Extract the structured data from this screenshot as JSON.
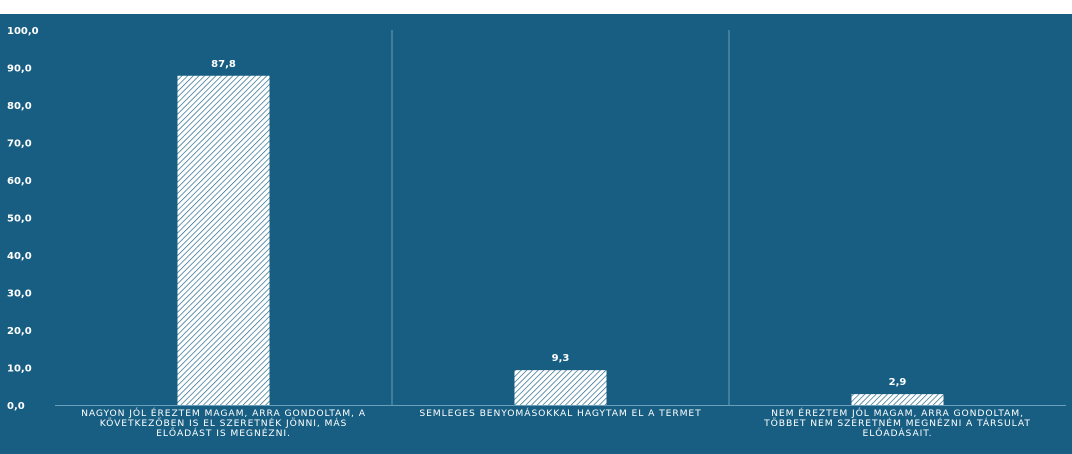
{
  "chart_data": {
    "type": "bar",
    "categories": [
      "NAGYON JÓL ÉREZTEM MAGAM, ARRA GONDOLTAM, A KÖVETKEZŐBEN IS EL SZERETNÉK JÖNNI, MÁS ELŐADÁST IS MEGNÉZNI.",
      "SEMLEGES BENYOMÁSOKKAL HAGYTAM EL A TERMET",
      "NEM ÉREZTEM JÓL MAGAM, ARRA GONDOLTAM, TÖBBET NEM SZERETNÉM MEGNÉZNI A TÁRSULAT ELŐADÁSAIT."
    ],
    "category_lines": [
      [
        "NAGYON JÓL ÉREZTEM MAGAM, ARRA GONDOLTAM, A",
        "KÖVETKEZŐBEN IS EL SZERETNÉK JÖNNI, MÁS",
        "ELŐADÁST IS MEGNÉZNI."
      ],
      [
        "SEMLEGES BENYOMÁSOKKAL HAGYTAM EL A TERMET"
      ],
      [
        "NEM ÉREZTEM JÓL MAGAM, ARRA GONDOLTAM,",
        "TÖBBET NEM SZERETNÉM MEGNÉZNI A TÁRSULAT",
        "ELŐADÁSAIT."
      ]
    ],
    "values": [
      87.8,
      9.3,
      2.9
    ],
    "value_labels": [
      "87,8",
      "9,3",
      "2,9"
    ],
    "ylim": [
      0,
      100
    ],
    "yticks": [
      "0,0",
      "10,0",
      "20,0",
      "30,0",
      "40,0",
      "50,0",
      "60,0",
      "70,0",
      "80,0",
      "90,0",
      "100,0"
    ],
    "title": "",
    "xlabel": "",
    "ylabel": "",
    "grid": "vertical category separators",
    "legend": "none",
    "bar_pattern": "diagonal hatch",
    "colors": {
      "background": "#175e82",
      "bar_fill": "#ffffff",
      "hatch": "#175e82",
      "separator": "#6a9fbc",
      "text": "#ffffff"
    }
  }
}
